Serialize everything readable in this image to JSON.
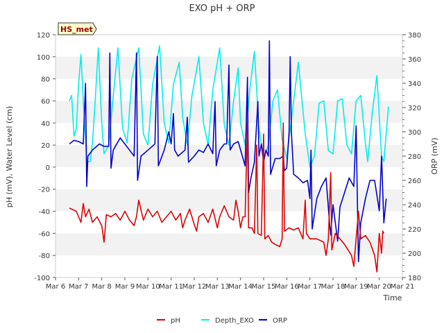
{
  "chart_data": {
    "type": "line",
    "title": "EXO pH + ORP",
    "xlabel": "Time",
    "ylabel": "pH (mV), Water Level (cm)",
    "ylabel_right": "ORP (mV)",
    "station_badge": "HS_met",
    "x_ticks": [
      "Mar 6",
      "Mar 7",
      "Mar 8",
      "Mar 9",
      "Mar 10",
      "Mar 11",
      "Mar 12",
      "Mar 13",
      "Mar 14",
      "Mar 15",
      "Mar 16",
      "Mar 17",
      "Mar 18",
      "Mar 19",
      "Mar 20",
      "Mar 21"
    ],
    "xlim": [
      6,
      21
    ],
    "ylim": [
      -100,
      120
    ],
    "ylim_right": [
      180,
      380
    ],
    "y_ticks": [
      "-100",
      "-80",
      "-60",
      "-40",
      "-20",
      "0",
      "20",
      "40",
      "60",
      "80",
      "100",
      "120"
    ],
    "y_ticks_right": [
      "180",
      "200",
      "220",
      "240",
      "260",
      "280",
      "300",
      "320",
      "340",
      "360",
      "380"
    ],
    "grid": "horizontal bands",
    "legend_position": "bottom",
    "series": [
      {
        "name": "pH",
        "axis": "left",
        "color": "#dd0000",
        "points": [
          [
            6.6,
            -37
          ],
          [
            6.9,
            -40
          ],
          [
            7.0,
            -45
          ],
          [
            7.1,
            -50
          ],
          [
            7.2,
            -33
          ],
          [
            7.3,
            -45
          ],
          [
            7.45,
            -38
          ],
          [
            7.6,
            -50
          ],
          [
            7.8,
            -45
          ],
          [
            8.0,
            -53
          ],
          [
            8.1,
            -68
          ],
          [
            8.2,
            -43
          ],
          [
            8.4,
            -45
          ],
          [
            8.6,
            -42
          ],
          [
            8.8,
            -48
          ],
          [
            9.0,
            -40
          ],
          [
            9.2,
            -48
          ],
          [
            9.4,
            -53
          ],
          [
            9.5,
            -45
          ],
          [
            9.6,
            -30
          ],
          [
            9.8,
            -48
          ],
          [
            10.0,
            -38
          ],
          [
            10.2,
            -45
          ],
          [
            10.4,
            -40
          ],
          [
            10.6,
            -50
          ],
          [
            10.8,
            -45
          ],
          [
            11.0,
            -40
          ],
          [
            11.2,
            -48
          ],
          [
            11.4,
            -42
          ],
          [
            11.5,
            -55
          ],
          [
            11.6,
            -48
          ],
          [
            11.8,
            -38
          ],
          [
            12.0,
            -52
          ],
          [
            12.1,
            -58
          ],
          [
            12.2,
            -45
          ],
          [
            12.4,
            -42
          ],
          [
            12.6,
            -50
          ],
          [
            12.8,
            -38
          ],
          [
            13.0,
            -55
          ],
          [
            13.1,
            -45
          ],
          [
            13.3,
            -35
          ],
          [
            13.5,
            -45
          ],
          [
            13.7,
            -48
          ],
          [
            13.8,
            -30
          ],
          [
            13.9,
            -40
          ],
          [
            14.0,
            -55
          ],
          [
            14.1,
            -45
          ],
          [
            14.2,
            -45
          ],
          [
            14.3,
            40
          ],
          [
            14.35,
            -55
          ],
          [
            14.5,
            -55
          ],
          [
            14.6,
            -60
          ],
          [
            14.7,
            20
          ],
          [
            14.75,
            -60
          ],
          [
            14.9,
            -62
          ],
          [
            15.0,
            30
          ],
          [
            15.05,
            -65
          ],
          [
            15.2,
            -62
          ],
          [
            15.35,
            -68
          ],
          [
            15.5,
            -70
          ],
          [
            15.7,
            -72
          ],
          [
            15.8,
            -65
          ],
          [
            15.85,
            40
          ],
          [
            15.9,
            -58
          ],
          [
            16.1,
            -55
          ],
          [
            16.3,
            -57
          ],
          [
            16.5,
            -55
          ],
          [
            16.7,
            -65
          ],
          [
            16.8,
            -30
          ],
          [
            16.85,
            -60
          ],
          [
            17.0,
            -65
          ],
          [
            17.3,
            -65
          ],
          [
            17.6,
            -68
          ],
          [
            17.7,
            -80
          ],
          [
            17.8,
            -65
          ],
          [
            17.9,
            -5
          ],
          [
            17.95,
            -75
          ],
          [
            18.1,
            -60
          ],
          [
            18.3,
            -65
          ],
          [
            18.5,
            -70
          ],
          [
            18.8,
            -80
          ],
          [
            18.9,
            -90
          ],
          [
            19.0,
            -65
          ],
          [
            19.1,
            -40
          ],
          [
            19.2,
            -65
          ],
          [
            19.4,
            -62
          ],
          [
            19.6,
            -68
          ],
          [
            19.8,
            -80
          ],
          [
            19.9,
            -95
          ],
          [
            20.0,
            -60
          ],
          [
            20.1,
            -78
          ],
          [
            20.15,
            -58
          ],
          [
            20.2,
            -60
          ]
        ]
      },
      {
        "name": "Depth_EXO",
        "axis": "left",
        "color": "#00eeee",
        "points": [
          [
            6.6,
            60
          ],
          [
            6.7,
            65
          ],
          [
            6.8,
            28
          ],
          [
            6.9,
            35
          ],
          [
            7.0,
            75
          ],
          [
            7.1,
            102
          ],
          [
            7.2,
            60
          ],
          [
            7.35,
            5
          ],
          [
            7.5,
            5
          ],
          [
            7.6,
            22
          ],
          [
            7.7,
            55
          ],
          [
            7.85,
            108
          ],
          [
            8.0,
            40
          ],
          [
            8.1,
            12
          ],
          [
            8.3,
            20
          ],
          [
            8.5,
            65
          ],
          [
            8.7,
            108
          ],
          [
            8.9,
            35
          ],
          [
            9.1,
            22
          ],
          [
            9.3,
            80
          ],
          [
            9.6,
            108
          ],
          [
            9.8,
            30
          ],
          [
            10.0,
            20
          ],
          [
            10.2,
            75
          ],
          [
            10.5,
            110
          ],
          [
            10.7,
            40
          ],
          [
            10.9,
            22
          ],
          [
            11.1,
            75
          ],
          [
            11.35,
            95
          ],
          [
            11.5,
            45
          ],
          [
            11.7,
            20
          ],
          [
            11.9,
            65
          ],
          [
            12.2,
            100
          ],
          [
            12.4,
            40
          ],
          [
            12.6,
            20
          ],
          [
            12.8,
            70
          ],
          [
            13.1,
            108
          ],
          [
            13.3,
            38
          ],
          [
            13.5,
            20
          ],
          [
            13.7,
            60
          ],
          [
            13.9,
            90
          ],
          [
            14.0,
            40
          ],
          [
            14.2,
            20
          ],
          [
            14.4,
            70
          ],
          [
            14.6,
            105
          ],
          [
            14.8,
            35
          ],
          [
            15.0,
            8
          ],
          [
            15.2,
            20
          ],
          [
            15.4,
            60
          ],
          [
            15.6,
            70
          ],
          [
            15.8,
            25
          ],
          [
            16.0,
            8
          ],
          [
            16.3,
            60
          ],
          [
            16.5,
            95
          ],
          [
            16.8,
            30
          ],
          [
            17.0,
            0
          ],
          [
            17.2,
            10
          ],
          [
            17.4,
            58
          ],
          [
            17.6,
            60
          ],
          [
            17.8,
            15
          ],
          [
            18.0,
            12
          ],
          [
            18.2,
            60
          ],
          [
            18.4,
            62
          ],
          [
            18.6,
            20
          ],
          [
            18.8,
            12
          ],
          [
            19.0,
            60
          ],
          [
            19.2,
            65
          ],
          [
            19.4,
            22
          ],
          [
            19.5,
            5
          ],
          [
            19.7,
            50
          ],
          [
            19.9,
            83
          ],
          [
            20.1,
            10
          ],
          [
            20.2,
            5
          ],
          [
            20.4,
            55
          ]
        ]
      },
      {
        "name": "ORP",
        "axis": "right",
        "color": "#0000cc",
        "points": [
          [
            6.6,
            290
          ],
          [
            6.8,
            293
          ],
          [
            7.0,
            292
          ],
          [
            7.2,
            290
          ],
          [
            7.3,
            340
          ],
          [
            7.35,
            255
          ],
          [
            7.4,
            280
          ],
          [
            7.6,
            285
          ],
          [
            7.9,
            290
          ],
          [
            8.1,
            288
          ],
          [
            8.3,
            288
          ],
          [
            8.35,
            365
          ],
          [
            8.4,
            270
          ],
          [
            8.5,
            285
          ],
          [
            8.8,
            295
          ],
          [
            9.0,
            290
          ],
          [
            9.2,
            285
          ],
          [
            9.4,
            280
          ],
          [
            9.5,
            365
          ],
          [
            9.55,
            260
          ],
          [
            9.7,
            280
          ],
          [
            10.0,
            285
          ],
          [
            10.3,
            290
          ],
          [
            10.4,
            362
          ],
          [
            10.45,
            272
          ],
          [
            10.7,
            285
          ],
          [
            10.9,
            300
          ],
          [
            11.0,
            290
          ],
          [
            11.1,
            315
          ],
          [
            11.15,
            285
          ],
          [
            11.3,
            280
          ],
          [
            11.6,
            285
          ],
          [
            11.7,
            312
          ],
          [
            11.75,
            275
          ],
          [
            12.0,
            280
          ],
          [
            12.2,
            285
          ],
          [
            12.4,
            283
          ],
          [
            12.6,
            290
          ],
          [
            12.8,
            282
          ],
          [
            12.9,
            325
          ],
          [
            12.95,
            272
          ],
          [
            13.1,
            285
          ],
          [
            13.3,
            290
          ],
          [
            13.4,
            290
          ],
          [
            13.5,
            355
          ],
          [
            13.55,
            285
          ],
          [
            13.7,
            290
          ],
          [
            13.9,
            292
          ],
          [
            14.2,
            272
          ],
          [
            14.3,
            345
          ],
          [
            14.35,
            250
          ],
          [
            14.45,
            262
          ],
          [
            14.6,
            275
          ],
          [
            14.75,
            325
          ],
          [
            14.8,
            280
          ],
          [
            14.9,
            290
          ],
          [
            15.0,
            275
          ],
          [
            15.1,
            285
          ],
          [
            15.2,
            280
          ],
          [
            15.25,
            375
          ],
          [
            15.3,
            265
          ],
          [
            15.5,
            278
          ],
          [
            15.7,
            278
          ],
          [
            15.85,
            280
          ],
          [
            15.9,
            268
          ],
          [
            16.0,
            270
          ],
          [
            16.1,
            300
          ],
          [
            16.15,
            362
          ],
          [
            16.2,
            300
          ],
          [
            16.3,
            265
          ],
          [
            16.5,
            262
          ],
          [
            16.7,
            258
          ],
          [
            16.9,
            260
          ],
          [
            17.0,
            245
          ],
          [
            17.05,
            285
          ],
          [
            17.1,
            220
          ],
          [
            17.3,
            245
          ],
          [
            17.5,
            255
          ],
          [
            17.7,
            262
          ],
          [
            17.85,
            225
          ],
          [
            17.9,
            215
          ],
          [
            18.0,
            240
          ],
          [
            18.2,
            210
          ],
          [
            18.3,
            238
          ],
          [
            18.5,
            250
          ],
          [
            18.7,
            262
          ],
          [
            18.9,
            255
          ],
          [
            19.0,
            305
          ],
          [
            19.1,
            193
          ],
          [
            19.2,
            225
          ],
          [
            19.4,
            245
          ],
          [
            19.6,
            260
          ],
          [
            19.8,
            260
          ],
          [
            20.0,
            235
          ],
          [
            20.1,
            280
          ],
          [
            20.2,
            225
          ],
          [
            20.3,
            245
          ]
        ]
      }
    ]
  }
}
